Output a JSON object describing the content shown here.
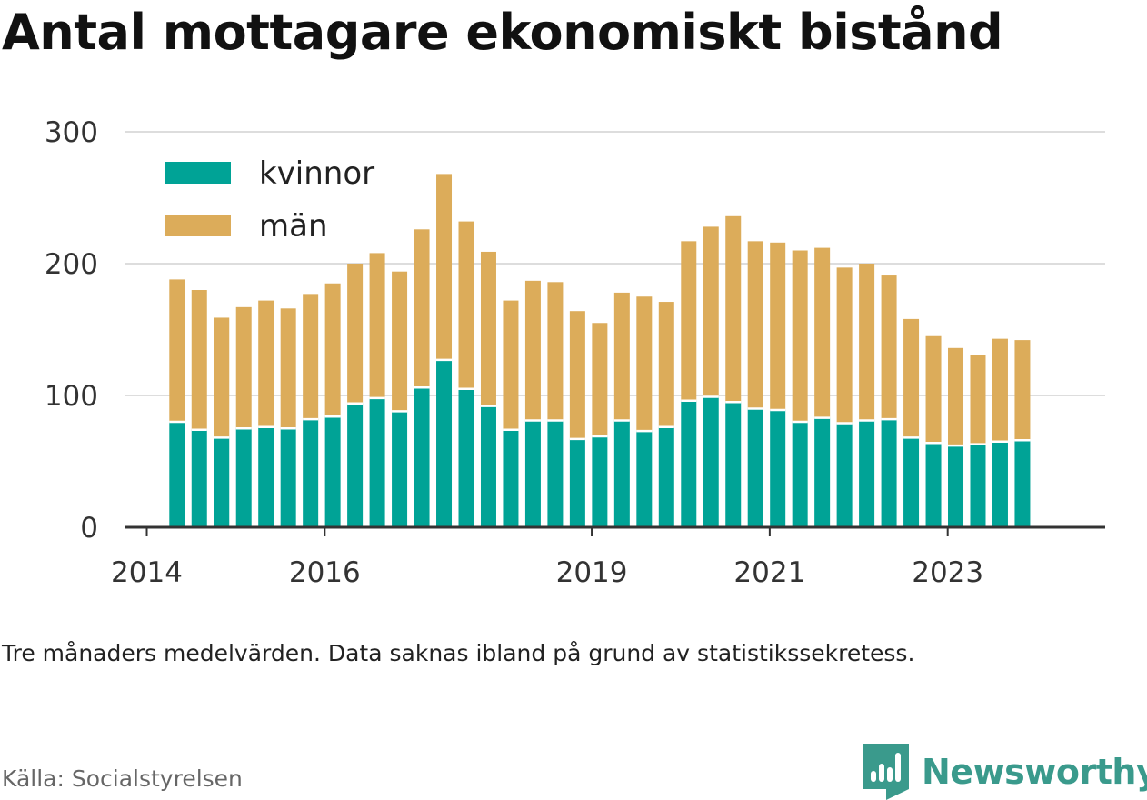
{
  "title": "Antal mottagare ekonomiskt bistånd",
  "note": "Tre månaders medelvärden. Data saknas ibland på grund av statistikssekretess.",
  "source": "Källa: Socialstyrelsen",
  "brand": {
    "name": "Newsworthy",
    "icon": "newsworthy-logo-icon",
    "color": "#3a9a8c"
  },
  "chart_data": {
    "type": "bar",
    "stacked": true,
    "title": "Antal mottagare ekonomiskt bistånd",
    "xlabel": "",
    "ylabel": "",
    "ylim": [
      0,
      300
    ],
    "yticks": [
      0,
      100,
      200,
      300
    ],
    "grid": true,
    "legend_position": "top-left",
    "xticks": [
      {
        "label": "2014",
        "x": 2014.0
      },
      {
        "label": "2016",
        "x": 2016.0
      },
      {
        "label": "2019",
        "x": 2019.0
      },
      {
        "label": "2021",
        "x": 2021.0
      },
      {
        "label": "2023",
        "x": 2023.0
      }
    ],
    "x": [
      2014.34,
      2014.59,
      2014.84,
      2015.09,
      2015.34,
      2015.59,
      2015.84,
      2016.09,
      2016.34,
      2016.59,
      2016.84,
      2017.09,
      2017.34,
      2017.59,
      2017.84,
      2018.09,
      2018.34,
      2018.59,
      2018.84,
      2019.09,
      2019.34,
      2019.59,
      2019.84,
      2020.09,
      2020.34,
      2020.59,
      2020.84,
      2021.09,
      2021.34,
      2021.59,
      2021.84,
      2022.09,
      2022.34,
      2022.59,
      2022.84,
      2023.09,
      2023.34,
      2023.59,
      2023.84
    ],
    "series": [
      {
        "name": "kvinnor",
        "color": "#00a396",
        "values": [
          80,
          74,
          68,
          75,
          76,
          75,
          82,
          84,
          94,
          98,
          88,
          106,
          127,
          105,
          92,
          74,
          81,
          81,
          67,
          69,
          81,
          73,
          76,
          96,
          99,
          95,
          90,
          89,
          80,
          83,
          79,
          81,
          82,
          68,
          64,
          62,
          63,
          65,
          66
        ]
      },
      {
        "name": "män",
        "color": "#dcac5a",
        "values": [
          108,
          106,
          91,
          92,
          96,
          91,
          95,
          101,
          106,
          110,
          106,
          120,
          141,
          127,
          117,
          98,
          106,
          105,
          97,
          86,
          97,
          102,
          95,
          121,
          129,
          141,
          127,
          127,
          130,
          129,
          118,
          119,
          109,
          90,
          81,
          74,
          68,
          78,
          76
        ]
      }
    ]
  }
}
